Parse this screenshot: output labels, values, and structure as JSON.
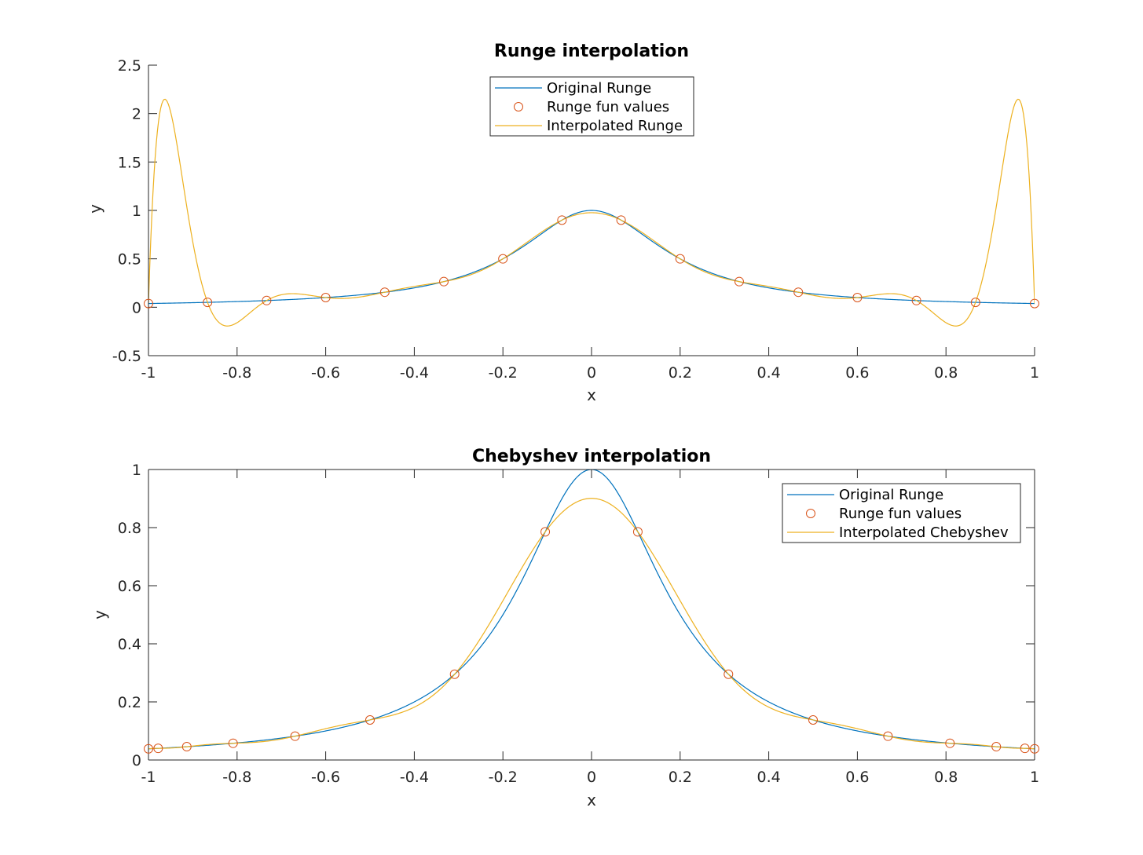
{
  "colors": {
    "original": "#0072BD",
    "interpolated": "#EDB120",
    "markers": "#D95319",
    "axes": "#262626",
    "background": "#ffffff"
  },
  "chart_data": [
    {
      "type": "line",
      "title": "Runge interpolation",
      "xlabel": "x",
      "ylabel": "y",
      "xlim": [
        -1,
        1
      ],
      "ylim": [
        -0.5,
        2.5
      ],
      "xticks": [
        -1,
        -0.8,
        -0.6,
        -0.4,
        -0.2,
        0,
        0.2,
        0.4,
        0.6,
        0.8,
        1
      ],
      "yticks": [
        -0.5,
        0,
        0.5,
        1,
        1.5,
        2,
        2.5
      ],
      "xtick_labels": [
        "-1",
        "-0.8",
        "-0.6",
        "-0.4",
        "-0.2",
        "0",
        "0.2",
        "0.4",
        "0.6",
        "0.8",
        "1"
      ],
      "ytick_labels": [
        "-0.5",
        "0",
        "0.5",
        "1",
        "1.5",
        "2",
        "2.5"
      ],
      "grid": false,
      "box": false,
      "legend_position": "top-center",
      "series": [
        {
          "name": "Original Runge",
          "style": "line",
          "color": "#0072BD",
          "function": "runge"
        },
        {
          "name": "Runge fun values",
          "style": "marker",
          "color": "#D95319",
          "x": [
            -1,
            -0.8667,
            -0.7333,
            -0.6,
            -0.4667,
            -0.3333,
            -0.2,
            -0.0667,
            0.0667,
            0.2,
            0.3333,
            0.4667,
            0.6,
            0.7333,
            0.8667,
            1
          ],
          "y": [
            0.0385,
            0.0505,
            0.0693,
            0.1,
            0.1552,
            0.2647,
            0.5,
            0.9,
            0.9,
            0.5,
            0.2647,
            0.1552,
            0.1,
            0.0693,
            0.0505,
            0.0385
          ]
        },
        {
          "name": "Interpolated Runge",
          "style": "line",
          "color": "#EDB120",
          "function": "lagrange-equispaced-16"
        }
      ]
    },
    {
      "type": "line",
      "title": "Chebyshev interpolation",
      "xlabel": "x",
      "ylabel": "y",
      "xlim": [
        -1,
        1
      ],
      "ylim": [
        0,
        1
      ],
      "xticks": [
        -1,
        -0.8,
        -0.6,
        -0.4,
        -0.2,
        0,
        0.2,
        0.4,
        0.6,
        0.8,
        1
      ],
      "yticks": [
        0,
        0.2,
        0.4,
        0.6,
        0.8,
        1
      ],
      "xtick_labels": [
        "-1",
        "-0.8",
        "-0.6",
        "-0.4",
        "-0.2",
        "0",
        "0.2",
        "0.4",
        "0.6",
        "0.8",
        "1"
      ],
      "ytick_labels": [
        "0",
        "0.2",
        "0.4",
        "0.6",
        "0.8",
        "1"
      ],
      "grid": false,
      "box": true,
      "legend_position": "top-right",
      "series": [
        {
          "name": "Original Runge",
          "style": "line",
          "color": "#0072BD",
          "function": "runge"
        },
        {
          "name": "Runge fun values",
          "style": "marker",
          "color": "#D95319",
          "x": [
            -1,
            -0.9781,
            -0.9135,
            -0.809,
            -0.6691,
            -0.5,
            -0.309,
            -0.1045,
            0.1045,
            0.309,
            0.5,
            0.6691,
            0.809,
            0.9135,
            0.9781,
            1
          ],
          "y": [
            0.0385,
            0.0401,
            0.0458,
            0.0576,
            0.082,
            0.1379,
            0.2952,
            0.7855,
            0.7855,
            0.2952,
            0.1379,
            0.082,
            0.0576,
            0.0458,
            0.0401,
            0.0385
          ]
        },
        {
          "name": "Interpolated Chebyshev",
          "style": "line",
          "color": "#EDB120",
          "function": "lagrange-chebyshev-16"
        }
      ]
    }
  ]
}
